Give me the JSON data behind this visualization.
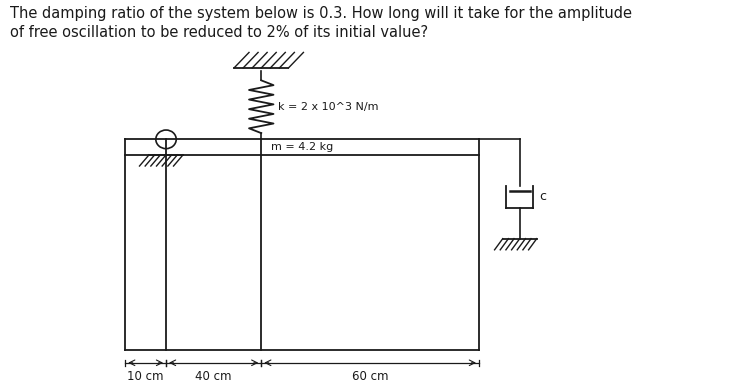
{
  "title_line1": "The damping ratio of the system below is 0.3. How long will it take for the amplitude",
  "title_line2": "of free oscillation to be reduced to 2% of its initial value?",
  "k_label": "k = 2 x 10^3 N/m",
  "m_label": "m = 4.2 kg",
  "c_label": "c",
  "dim1": "10 cm",
  "dim2": "40 cm",
  "dim3": "60 cm",
  "bg_color": "#ffffff",
  "line_color": "#1a1a1a",
  "title_fontsize": 10.5,
  "label_fontsize": 8.0,
  "dim_fontsize": 8.5
}
